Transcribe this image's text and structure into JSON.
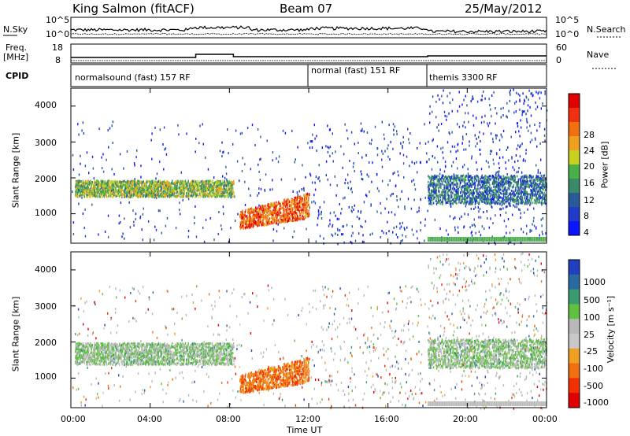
{
  "header": {
    "radar": "King Salmon (fitACF)",
    "beam": "Beam 07",
    "date": "25/May/2012"
  },
  "panels": {
    "nsky_label": "N.Sky",
    "nsky_ticks": [
      "10^5",
      "10^0"
    ],
    "nsearch_label": "N.Search",
    "nsearch_ticks": [
      "10^5",
      "10^0"
    ],
    "freq_label_1": "Freq.",
    "freq_label_2": "[MHz]",
    "freq_ticks": [
      "18",
      "8"
    ],
    "nave_label": "Nave",
    "nave_ticks": [
      "60",
      "0"
    ],
    "cpid_label": "CPID",
    "cpid_segments": [
      {
        "label": "normalsound (fast) 157 RF",
        "start_hour": 0
      },
      {
        "label": "normal (fast) 151 RF",
        "start_hour": 12
      },
      {
        "label": "themis 3300 RF",
        "start_hour": 18
      }
    ]
  },
  "power_panel": {
    "ylabel": "Slant Range [km]",
    "yticks": [
      "4000",
      "3000",
      "2000",
      "1000"
    ],
    "colorbar_label": "Power [dB]",
    "colorbar_ticks": [
      "28",
      "24",
      "20",
      "16",
      "12",
      "8",
      "4"
    ],
    "colors": [
      "#0a14ff",
      "#1e3cc8",
      "#2a5a9a",
      "#3a8a6a",
      "#48b048",
      "#c8d020",
      "#f0a020",
      "#f07010",
      "#f03010",
      "#e00000"
    ]
  },
  "velocity_panel": {
    "ylabel": "Slant Range [km]",
    "yticks": [
      "4000",
      "3000",
      "2000",
      "1000"
    ],
    "colorbar_label": "Velocity [m s⁻¹]",
    "colorbar_ticks": [
      "1000",
      "500",
      "100",
      "25",
      "-25",
      "-100",
      "-500",
      "-1000"
    ],
    "colors": [
      "#2040c0",
      "#2a6aa0",
      "#3a9a70",
      "#60c040",
      "#b8b8b8",
      "#c8c8c8",
      "#f0a020",
      "#f07010",
      "#f03000",
      "#e00000"
    ]
  },
  "time_axis": {
    "ticks": [
      "00:00",
      "04:00",
      "08:00",
      "12:00",
      "16:00",
      "20:00",
      "00:00"
    ],
    "label": "Time UT"
  },
  "chart_data": {
    "type": "heatmap",
    "x_range_hours": [
      0,
      24
    ],
    "y_range_km": [
      180,
      4500
    ],
    "power_features": [
      {
        "hour_start": 0.2,
        "hour_end": 8.2,
        "range_km": [
          1500,
          1950
        ],
        "power_db": 16
      },
      {
        "hour_start": 8.5,
        "hour_end": 12.0,
        "range_km": [
          700,
          1600
        ],
        "power_db": 26
      },
      {
        "hour_start": 18.0,
        "hour_end": 24.0,
        "range_km": [
          1300,
          2100
        ],
        "power_db": 10
      }
    ],
    "velocity_features": [
      {
        "hour_start": 0.2,
        "hour_end": 8.2,
        "range_km": [
          1400,
          2000
        ],
        "velocity_ms": 0
      },
      {
        "hour_start": 8.5,
        "hour_end": 12.0,
        "range_km": [
          700,
          1600
        ],
        "velocity_ms": -400
      },
      {
        "hour_start": 18.0,
        "hour_end": 24.0,
        "range_km": [
          1300,
          2100
        ],
        "velocity_ms": 0
      }
    ]
  }
}
